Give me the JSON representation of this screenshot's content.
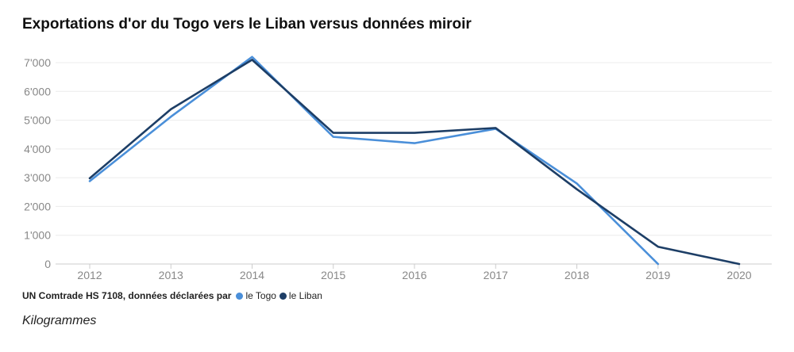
{
  "chart_data": {
    "type": "line",
    "title": "Exportations d'or du Togo vers le Liban versus données miroir",
    "x": [
      "2012",
      "2013",
      "2014",
      "2015",
      "2016",
      "2017",
      "2018",
      "2019",
      "2020"
    ],
    "ylim": [
      0,
      7000
    ],
    "yticks": [
      "0",
      "1'000",
      "2'000",
      "3'000",
      "4'000",
      "5'000",
      "6'000",
      "7'000"
    ],
    "grid": true,
    "legend_position": "bottom-left",
    "series": [
      {
        "name": "le Togo",
        "color": "#4a8fd9",
        "values": [
          2880,
          5120,
          7200,
          4420,
          4200,
          4700,
          2800,
          0,
          null
        ]
      },
      {
        "name": "le Liban",
        "color": "#1d3e66",
        "values": [
          2980,
          5380,
          7100,
          4560,
          4560,
          4730,
          2600,
          600,
          0
        ]
      }
    ]
  },
  "legend": {
    "label": "UN Comtrade HS 7108, données déclarées par"
  },
  "unit_note": "Kilogrammes"
}
